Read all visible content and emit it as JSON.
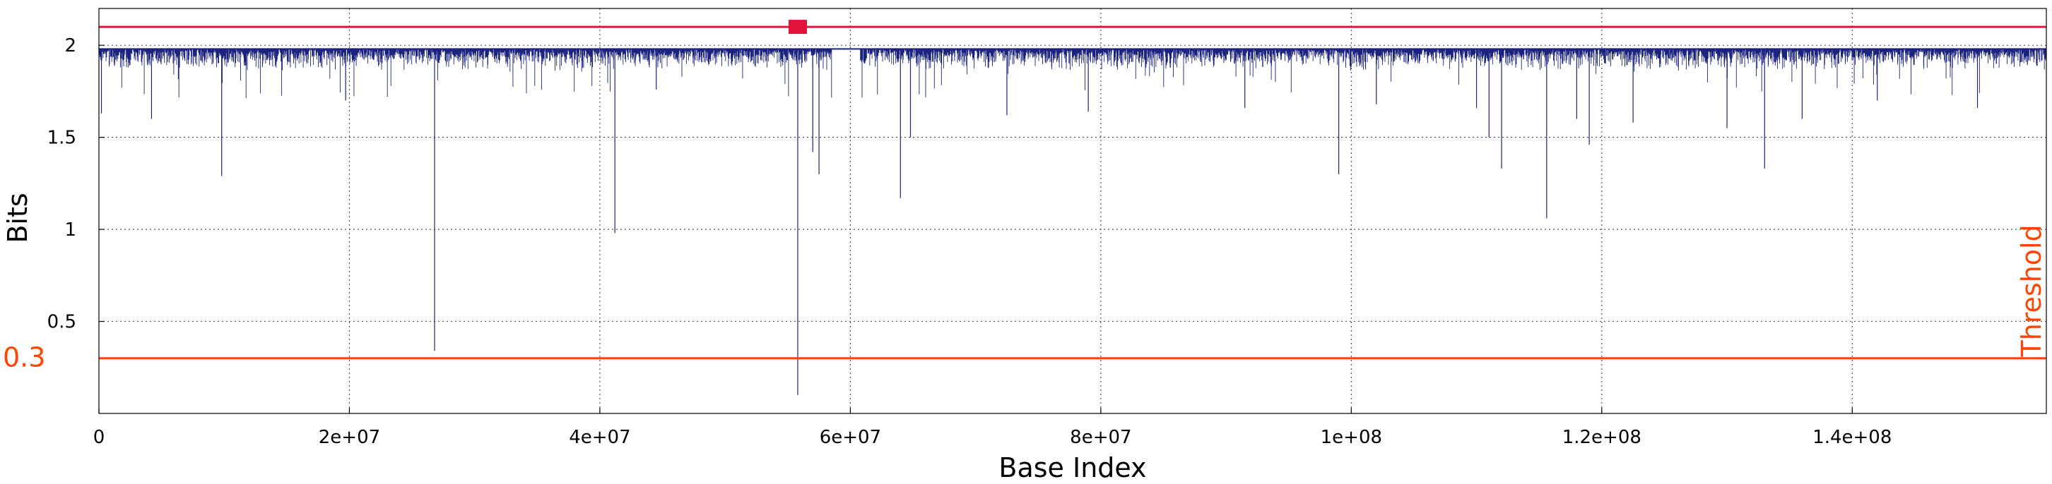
{
  "chart_data": {
    "type": "line",
    "title": "",
    "xlabel": "Base Index",
    "ylabel": "Bits",
    "xlim": [
      0,
      155500000
    ],
    "ylim": [
      0,
      2.2
    ],
    "grid": true,
    "x_ticks": [
      0,
      20000000,
      40000000,
      60000000,
      80000000,
      100000000,
      120000000,
      140000000
    ],
    "x_tick_labels": [
      "0",
      "2e+07",
      "4e+07",
      "6e+07",
      "8e+07",
      "1e+08",
      "1.2e+08",
      "1.4e+08"
    ],
    "y_ticks": [
      0.5,
      1,
      1.5,
      2
    ],
    "y_tick_labels": [
      "0.5",
      "1",
      "1.5",
      "2"
    ],
    "series": [
      {
        "color": "#1a237e",
        "baseline": 1.98,
        "dense_band": [
          1.86,
          1.98
        ],
        "gaps": [
          [
            58500000,
            60800000
          ]
        ],
        "dips": [
          {
            "x": 200000,
            "y": 1.63
          },
          {
            "x": 4200000,
            "y": 1.6
          },
          {
            "x": 9800000,
            "y": 1.29
          },
          {
            "x": 19700000,
            "y": 1.7
          },
          {
            "x": 26800000,
            "y": 0.34
          },
          {
            "x": 41200000,
            "y": 0.98
          },
          {
            "x": 44500000,
            "y": 1.76
          },
          {
            "x": 55800000,
            "y": 0.1
          },
          {
            "x": 57000000,
            "y": 1.42
          },
          {
            "x": 57500000,
            "y": 1.3
          },
          {
            "x": 64000000,
            "y": 1.17
          },
          {
            "x": 64800000,
            "y": 1.5
          },
          {
            "x": 72500000,
            "y": 1.62
          },
          {
            "x": 79000000,
            "y": 1.64
          },
          {
            "x": 91500000,
            "y": 1.66
          },
          {
            "x": 99000000,
            "y": 1.3
          },
          {
            "x": 102000000,
            "y": 1.68
          },
          {
            "x": 110000000,
            "y": 1.66
          },
          {
            "x": 111000000,
            "y": 1.5
          },
          {
            "x": 112000000,
            "y": 1.33
          },
          {
            "x": 115600000,
            "y": 1.06
          },
          {
            "x": 118000000,
            "y": 1.6
          },
          {
            "x": 119000000,
            "y": 1.46
          },
          {
            "x": 122500000,
            "y": 1.58
          },
          {
            "x": 130000000,
            "y": 1.55
          },
          {
            "x": 133000000,
            "y": 1.33
          },
          {
            "x": 136000000,
            "y": 1.6
          },
          {
            "x": 142000000,
            "y": 1.7
          },
          {
            "x": 150000000,
            "y": 1.66
          }
        ]
      }
    ],
    "reference_lines": [
      {
        "y": 2.1,
        "color": "#e0143c",
        "marker_x": 55800000
      },
      {
        "y": 0.3,
        "color": "#ff4500",
        "label": "0.3",
        "side_text": "Threshold"
      }
    ]
  }
}
